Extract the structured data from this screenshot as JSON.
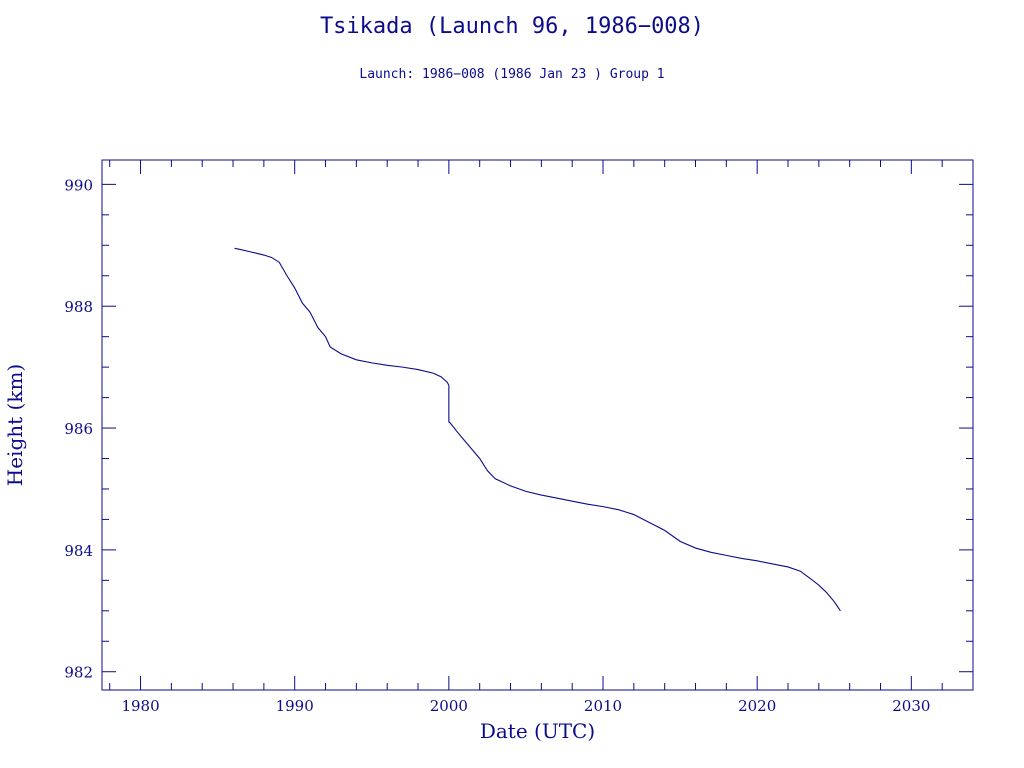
{
  "chart_data": {
    "type": "line",
    "title": "Tsikada (Launch 96, 1986−008)",
    "subtitle": "Launch: 1986−008  (1986 Jan 23 )  Group 1",
    "xlabel": "Date (UTC)",
    "ylabel": "Height (km)",
    "xlim": [
      1977.5,
      2034
    ],
    "ylim": [
      981.7,
      990.4
    ],
    "xticks": [
      1980,
      1990,
      2000,
      2010,
      2020,
      2030
    ],
    "yticks": [
      982,
      984,
      986,
      988,
      990
    ],
    "grid": false,
    "line_color": "#0b0b8c",
    "series": [
      {
        "x": [
          1986.1,
          1986.5,
          1987.0,
          1987.5,
          1988.0,
          1988.5,
          1989.0,
          1989.5,
          1990.0,
          1990.5,
          1991.0,
          1991.5,
          1992.0,
          1992.3,
          1993.0,
          1994.0,
          1995.0,
          1996.0,
          1997.0,
          1998.0,
          1999.0,
          1999.5,
          1999.9,
          2000.0,
          2000.0,
          2000.1,
          2000.5,
          2001.0,
          2001.5,
          2002.0,
          2002.5,
          2003.0,
          2004.0,
          2005.0,
          2006.0,
          2007.0,
          2008.0,
          2009.0,
          2010.0,
          2011.0,
          2011.5,
          2012.0,
          2013.0,
          2014.0,
          2015.0,
          2016.0,
          2017.0,
          2018.0,
          2019.0,
          2020.0,
          2021.0,
          2022.0,
          2022.8,
          2023.5,
          2024.0,
          2024.5,
          2025.0,
          2025.4
        ],
        "y": [
          988.95,
          988.93,
          988.9,
          988.87,
          988.84,
          988.8,
          988.72,
          988.5,
          988.3,
          988.05,
          987.9,
          987.65,
          987.5,
          987.33,
          987.22,
          987.12,
          987.07,
          987.03,
          987.0,
          986.96,
          986.9,
          986.84,
          986.75,
          986.7,
          986.1,
          986.08,
          985.95,
          985.8,
          985.65,
          985.5,
          985.3,
          985.17,
          985.05,
          984.96,
          984.9,
          984.85,
          984.8,
          984.75,
          984.71,
          984.66,
          984.62,
          984.58,
          984.45,
          984.32,
          984.14,
          984.03,
          983.96,
          983.91,
          983.86,
          983.82,
          983.77,
          983.72,
          983.65,
          983.52,
          983.42,
          983.3,
          983.15,
          983.0
        ]
      }
    ]
  }
}
